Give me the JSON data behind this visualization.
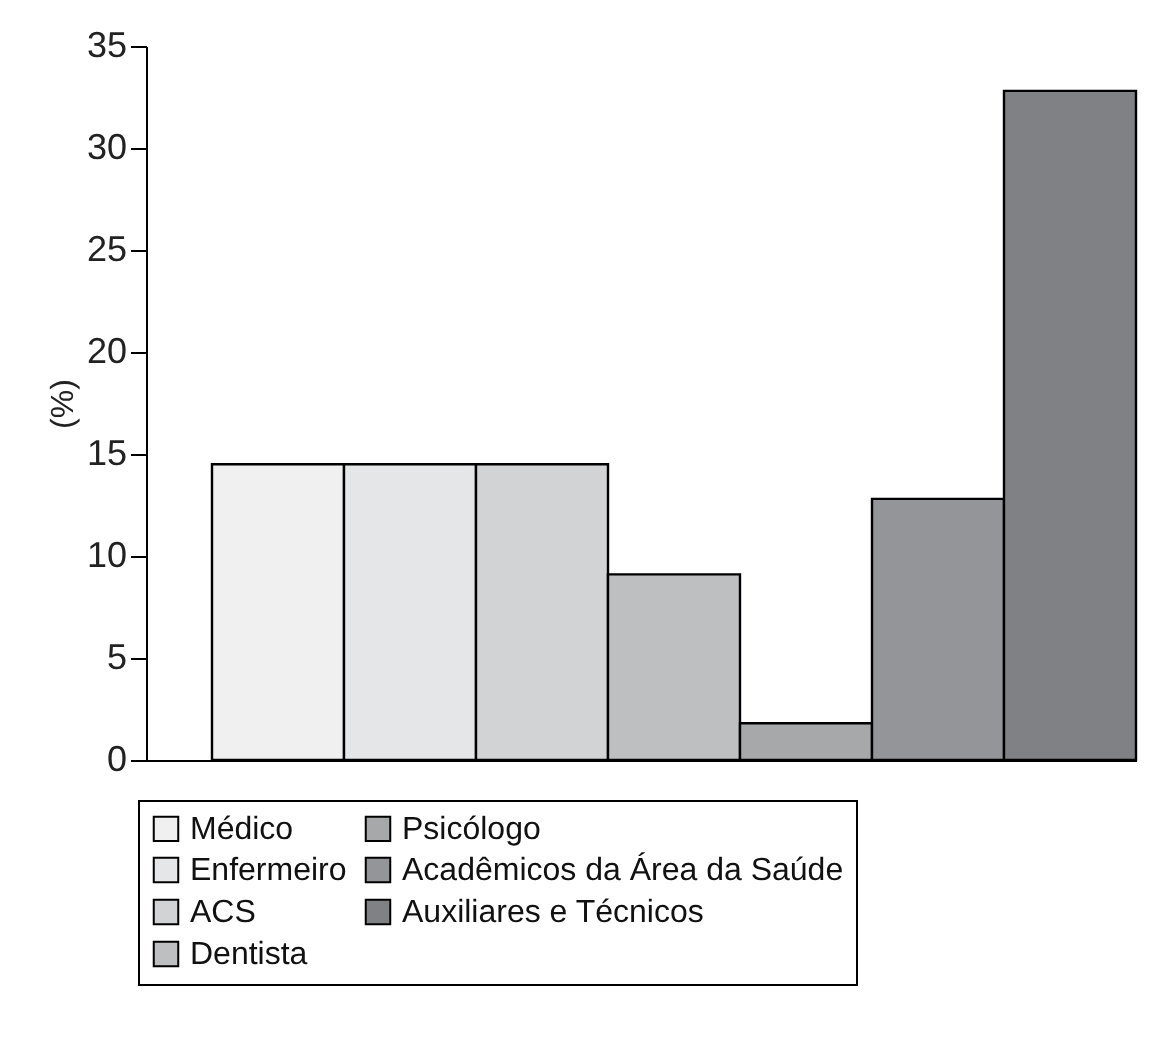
{
  "chart_data": {
    "type": "bar",
    "ylabel": "(%)",
    "categories": [
      null
    ],
    "series": [
      {
        "name": "Médico",
        "color": "#eff0ef",
        "values": [
          14.5
        ]
      },
      {
        "name": "Enfermeiro",
        "color": "#e5e6e7",
        "values": [
          14.5
        ]
      },
      {
        "name": "ACS",
        "color": "#d2d3d4",
        "values": [
          14.5
        ]
      },
      {
        "name": "Dentista",
        "color": "#bebfc0",
        "values": [
          9.1
        ]
      },
      {
        "name": "Psicólogo",
        "color": "#a7a8aa",
        "values": [
          1.8
        ]
      },
      {
        "name": "Acadêmicos da Área da Saúde",
        "color": "#949598",
        "values": [
          12.8
        ]
      },
      {
        "name": "Auxiliares e Técnicos",
        "color": "#808184",
        "values": [
          32.8
        ]
      }
    ],
    "ylim": [
      0,
      35
    ],
    "yticks": [
      0,
      5,
      10,
      15,
      20,
      25,
      30,
      35
    ],
    "grid": false,
    "legend": "bottom"
  }
}
